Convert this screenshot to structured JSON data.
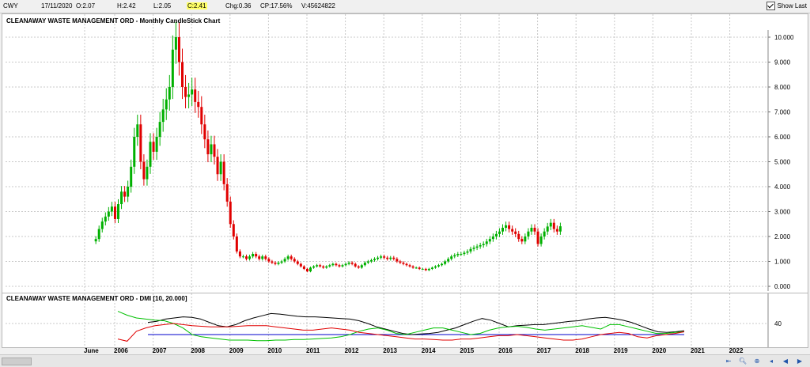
{
  "header": {
    "symbol": "CWY",
    "date": "17/11/2020",
    "open": "O:2.07",
    "high": "H:2.42",
    "low": "L:2.05",
    "close": "C:2.41",
    "change": "Chg:0.36",
    "change_pct": "CP:17.56%",
    "volume": "V:45624822",
    "show_last_label": "Show Last",
    "show_last_checked": true
  },
  "colors": {
    "up": "#00b000",
    "down": "#e00000",
    "adx": "#000000",
    "di_plus": "#00c000",
    "di_minus": "#e00000",
    "threshold": "#0000cc",
    "grid": "#c8c8c8"
  },
  "chart_data": [
    {
      "type": "candlestick",
      "title": "CLEANAWAY WASTE MANAGEMENT ORD - Monthly CandleStick Chart",
      "ylim": [
        0,
        10
      ],
      "yticks": [
        "0.000",
        "1.000",
        "2.000",
        "3.000",
        "4.000",
        "5.000",
        "6.000",
        "7.000",
        "8.000",
        "9.000",
        "10.000"
      ],
      "xticks": [
        "June",
        "2006",
        "2007",
        "2008",
        "2009",
        "2010",
        "2011",
        "2012",
        "2013",
        "2014",
        "2015",
        "2016",
        "2017",
        "2018",
        "2019",
        "2020",
        "2021",
        "2022"
      ],
      "grid": true,
      "series": [
        {
          "name": "close",
          "x_start": "2005-06",
          "values": [
            1.9,
            2.3,
            2.6,
            2.8,
            3.0,
            3.2,
            2.7,
            3.3,
            3.8,
            3.6,
            4.0,
            4.8,
            6.0,
            6.5,
            5.0,
            4.3,
            4.8,
            5.8,
            5.4,
            6.0,
            6.6,
            7.1,
            7.5,
            8.0,
            9.5,
            10.0,
            9.0,
            8.0,
            7.6,
            7.7,
            7.9,
            7.4,
            7.2,
            6.5,
            5.9,
            5.3,
            5.7,
            5.2,
            4.5,
            5.0,
            4.1,
            3.4,
            2.5,
            2.0,
            1.4,
            1.2,
            1.2,
            1.1,
            1.2,
            1.3,
            1.2,
            1.1,
            1.2,
            1.1,
            1.0,
            0.95,
            0.9,
            0.95,
            1.0,
            1.1,
            1.2,
            1.1,
            1.0,
            0.9,
            0.8,
            0.7,
            0.6,
            0.75,
            0.8,
            0.85,
            0.8,
            0.75,
            0.8,
            0.85,
            0.9,
            0.85,
            0.8,
            0.85,
            0.9,
            0.95,
            0.9,
            0.8,
            0.75,
            0.85,
            0.95,
            1.0,
            1.05,
            1.1,
            1.15,
            1.2,
            1.15,
            1.1,
            1.15,
            1.1,
            1.0,
            0.95,
            0.9,
            0.85,
            0.8,
            0.75,
            0.75,
            0.7,
            0.7,
            0.65,
            0.7,
            0.75,
            0.8,
            0.85,
            0.9,
            1.0,
            1.1,
            1.2,
            1.25,
            1.3,
            1.3,
            1.35,
            1.4,
            1.5,
            1.55,
            1.6,
            1.65,
            1.7,
            1.8,
            1.9,
            2.0,
            2.1,
            2.2,
            2.35,
            2.45,
            2.3,
            2.2,
            2.1,
            1.9,
            1.8,
            2.0,
            2.2,
            2.35,
            2.2,
            1.7,
            2.0,
            2.2,
            2.4,
            2.55,
            2.3,
            2.2,
            2.41
          ]
        }
      ]
    },
    {
      "type": "line",
      "title": "CLEANAWAY WASTE MANAGEMENT ORD - DMI [10, 20.000]",
      "yticks": [
        "40"
      ],
      "ylim": [
        0,
        80
      ],
      "threshold": 20,
      "series": [
        {
          "name": "ADX",
          "values": [
            42,
            44,
            48,
            50,
            52,
            51,
            48,
            42,
            36,
            34,
            38,
            45,
            50,
            54,
            58,
            57,
            55,
            53,
            52,
            52,
            51,
            50,
            49,
            48,
            45,
            40,
            34,
            30,
            26,
            22,
            20,
            21,
            22,
            24,
            28,
            32,
            38,
            44,
            49,
            46,
            40,
            34,
            36,
            37,
            38,
            38,
            40,
            42,
            44,
            45,
            48,
            50,
            51,
            49,
            46,
            42,
            36,
            30,
            25,
            24,
            25,
            27
          ]
        },
        {
          "name": "DI+",
          "values": [
            62,
            55,
            50,
            48,
            46,
            45,
            40,
            32,
            20,
            16,
            14,
            12,
            10,
            10,
            10,
            9,
            9,
            10,
            10,
            11,
            11,
            12,
            13,
            14,
            16,
            20,
            26,
            30,
            32,
            28,
            22,
            20,
            24,
            28,
            32,
            32,
            28,
            24,
            20,
            22,
            28,
            32,
            34,
            35,
            33,
            30,
            28,
            30,
            32,
            34,
            36,
            33,
            30,
            38,
            38,
            34,
            30,
            26,
            22,
            22,
            24,
            25
          ]
        },
        {
          "name": "DI-",
          "values": [
            12,
            8,
            26,
            32,
            36,
            38,
            40,
            38,
            36,
            35,
            34,
            34,
            34,
            35,
            36,
            36,
            36,
            34,
            32,
            30,
            28,
            28,
            30,
            32,
            30,
            28,
            24,
            22,
            20,
            18,
            16,
            14,
            12,
            12,
            11,
            10,
            10,
            12,
            12,
            14,
            16,
            18,
            18,
            20,
            18,
            16,
            14,
            12,
            10,
            10,
            12,
            16,
            20,
            22,
            24,
            22,
            16,
            14,
            18,
            20,
            22,
            25
          ]
        }
      ]
    }
  ]
}
